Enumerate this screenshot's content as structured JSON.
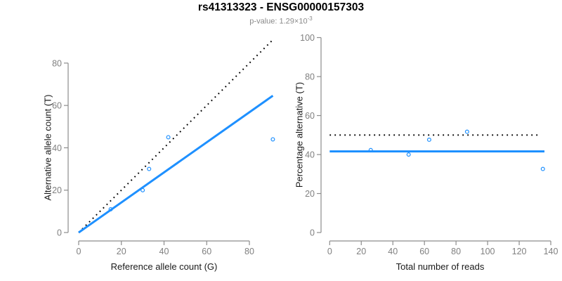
{
  "header": {
    "title": "rs41313323 - ENSG00000157303",
    "pvalue_label": "p-value: 1.29×10",
    "pvalue_exponent": "-3"
  },
  "colors": {
    "accent_blue": "#1E90FF",
    "identity_black": "#000000",
    "axis_gray": "#8c8c8c",
    "tick_label_gray": "#808080",
    "subtitle_gray": "#8a8a8a"
  },
  "chart_data": [
    {
      "name": "allele-counts",
      "type": "scatter",
      "xlabel": "Reference allele count (G)",
      "ylabel": "Alternative allele count (T)",
      "xticks": [
        0,
        20,
        40,
        60,
        80
      ],
      "yticks": [
        0,
        20,
        40,
        60,
        80
      ],
      "xlim": [
        0,
        95
      ],
      "ylim": [
        0,
        91.5
      ],
      "grid": false,
      "point_style": "open-circle",
      "point_color": "#1E90FF",
      "points": [
        [
          15,
          11
        ],
        [
          30,
          20
        ],
        [
          33,
          30
        ],
        [
          42,
          45
        ],
        [
          91,
          44
        ]
      ],
      "lines": [
        {
          "name": "identity-line",
          "style": "dotted",
          "color": "#000000",
          "width": 2,
          "from": [
            0,
            0
          ],
          "to": [
            91.5,
            91.5
          ]
        },
        {
          "name": "fit-line",
          "style": "solid",
          "color": "#1E90FF",
          "width": 3,
          "from": [
            0,
            0
          ],
          "to": [
            91,
            64.6
          ]
        }
      ]
    },
    {
      "name": "percentage-alternative",
      "type": "scatter",
      "xlabel": "Total number of reads",
      "ylabel": "Percentage alternative (T)",
      "xticks": [
        0,
        20,
        40,
        60,
        80,
        100,
        120,
        140
      ],
      "yticks": [
        0,
        20,
        40,
        60,
        80,
        100
      ],
      "xlim": [
        0,
        140
      ],
      "ylim": [
        0,
        100
      ],
      "grid": false,
      "point_style": "open-circle",
      "point_color": "#1E90FF",
      "points": [
        [
          26,
          42.3
        ],
        [
          50,
          40
        ],
        [
          63,
          47.6
        ],
        [
          87,
          51.7
        ],
        [
          135,
          32.6
        ]
      ],
      "lines": [
        {
          "name": "expected-50pct-line",
          "style": "dotted",
          "color": "#000000",
          "width": 2,
          "from": [
            0,
            50
          ],
          "to": [
            133,
            50
          ]
        },
        {
          "name": "fit-line",
          "style": "solid",
          "color": "#1E90FF",
          "width": 3,
          "from": [
            0,
            41.6
          ],
          "to": [
            136,
            41.6
          ]
        }
      ]
    }
  ]
}
